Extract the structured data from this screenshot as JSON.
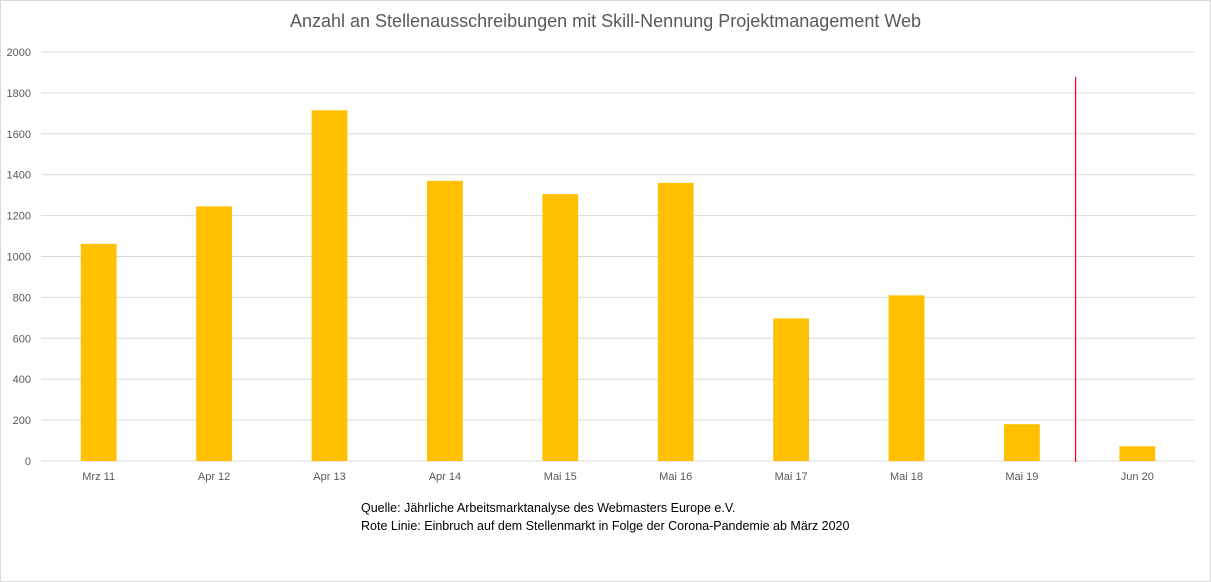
{
  "chart_data": {
    "type": "bar",
    "title": "Anzahl an Stellenausschreibungen mit Skill-Nennung Projektmanagement Web",
    "xlabel": "",
    "ylabel": "",
    "categories": [
      "Mrz 11",
      "Apr 12",
      "Apr 13",
      "Apr 14",
      "Mai 15",
      "Mai 16",
      "Mai 17",
      "Mai 18",
      "Mai 19",
      "Jun 20"
    ],
    "series": [
      {
        "values": [
          1062,
          1245,
          1715,
          1370,
          1305,
          1360,
          697,
          810,
          180,
          72
        ],
        "color": "#FFC000"
      }
    ],
    "ylim": [
      0,
      2000
    ],
    "yticks": [
      "0",
      "200",
      "400",
      "600",
      "800",
      "1000",
      "1200",
      "1400",
      "1600",
      "1800",
      "2000"
    ],
    "grid": true,
    "legend": "none",
    "annotation": {
      "type": "vertical-line",
      "between": [
        "Mai 19",
        "Jun 20"
      ],
      "color": "#FF0000"
    }
  },
  "notes": {
    "source": "Quelle: Jährliche Arbeitsmarktanalyse des Webmasters Europe e.V.",
    "red_line": "Rote Linie: Einbruch auf dem Stellenmarkt in Folge der Corona-Pandemie ab März 2020"
  },
  "colors": {
    "bar": "#FFC000",
    "grid": "#d9d9d9",
    "text": "#595959",
    "marker_line": "#FF0000"
  }
}
